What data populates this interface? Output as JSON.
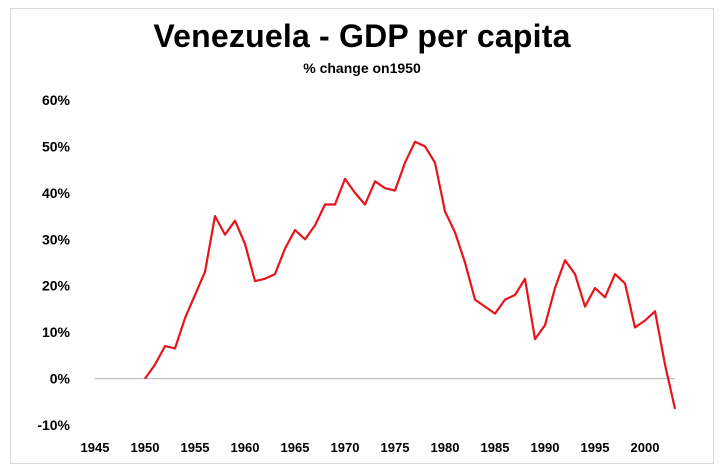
{
  "chart_data": {
    "type": "line",
    "title": "Venezuela - GDP per capita",
    "subtitle": "% change on1950",
    "xlabel": "",
    "ylabel": "",
    "xlim": [
      1945,
      2003
    ],
    "ylim": [
      -10,
      60
    ],
    "x_ticks": [
      1945,
      1950,
      1955,
      1960,
      1965,
      1970,
      1975,
      1980,
      1985,
      1990,
      1995,
      2000
    ],
    "y_ticks": [
      -10,
      0,
      10,
      20,
      30,
      40,
      50,
      60
    ],
    "y_tick_labels": [
      "-10%",
      "0%",
      "10%",
      "20%",
      "30%",
      "40%",
      "50%",
      "60%"
    ],
    "grid": false,
    "legend": "none",
    "color": "#e8141b",
    "series": [
      {
        "x": [
          1950,
          1951,
          1952,
          1953,
          1954,
          1955,
          1956,
          1957,
          1958,
          1959,
          1960,
          1961,
          1962,
          1963,
          1964,
          1965,
          1966,
          1967,
          1968,
          1969,
          1970,
          1971,
          1972,
          1973,
          1974,
          1975,
          1976,
          1977,
          1978,
          1979,
          1980,
          1981,
          1982,
          1983,
          1984,
          1985,
          1986,
          1987,
          1988,
          1989,
          1990,
          1991,
          1992,
          1993,
          1994,
          1995,
          1996,
          1997,
          1998,
          1999,
          2000,
          2001,
          2002,
          2003
        ],
        "values": [
          0,
          3,
          7,
          6.5,
          13,
          18,
          23,
          35,
          31,
          34,
          29,
          21,
          21.5,
          22.5,
          28,
          32,
          30,
          33,
          37.5,
          37.5,
          43,
          40,
          37.5,
          42.5,
          41,
          40.5,
          46.5,
          51,
          50,
          46.5,
          36,
          31.5,
          25,
          17,
          15.5,
          14,
          17,
          18,
          21.5,
          8.5,
          11.5,
          19.5,
          25.5,
          22.5,
          15.5,
          19.5,
          17.5,
          22.5,
          20.5,
          11,
          12.5,
          14.5,
          3,
          -6.5
        ]
      }
    ]
  }
}
